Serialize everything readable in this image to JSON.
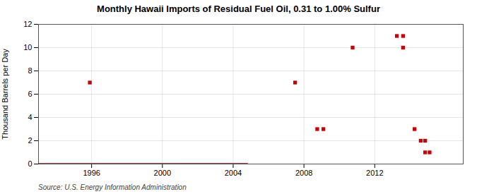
{
  "chart_data": {
    "type": "scatter",
    "title": "Monthly Hawaii Imports of Residual Fuel Oil, 0.31 to 1.00% Sulfur",
    "ylabel": "Thousand Barrels per Day",
    "source": "Source: U.S. Energy Information Administration",
    "xlim": [
      1993.0,
      2017.0
    ],
    "ylim": [
      0,
      12
    ],
    "xticks": [
      1996,
      2000,
      2004,
      2008,
      2012
    ],
    "yticks": [
      0,
      2,
      4,
      6,
      8,
      10,
      12
    ],
    "grid": true,
    "series": [
      {
        "type": "scatter",
        "color": "#cc0000",
        "marker": "square",
        "x": [
          1995.9,
          2007.5,
          2008.75,
          2009.1,
          2010.75,
          2013.25,
          2013.6,
          2013.6,
          2014.25,
          2014.6,
          2014.85,
          2014.85,
          2015.1
        ],
        "values": [
          7,
          7,
          3,
          3,
          10,
          11,
          11,
          10,
          3,
          2,
          2,
          1,
          1
        ]
      },
      {
        "type": "line",
        "color": "#8b0000",
        "x": [
          1993.0,
          2004.8
        ],
        "values": [
          0,
          0
        ]
      }
    ]
  }
}
